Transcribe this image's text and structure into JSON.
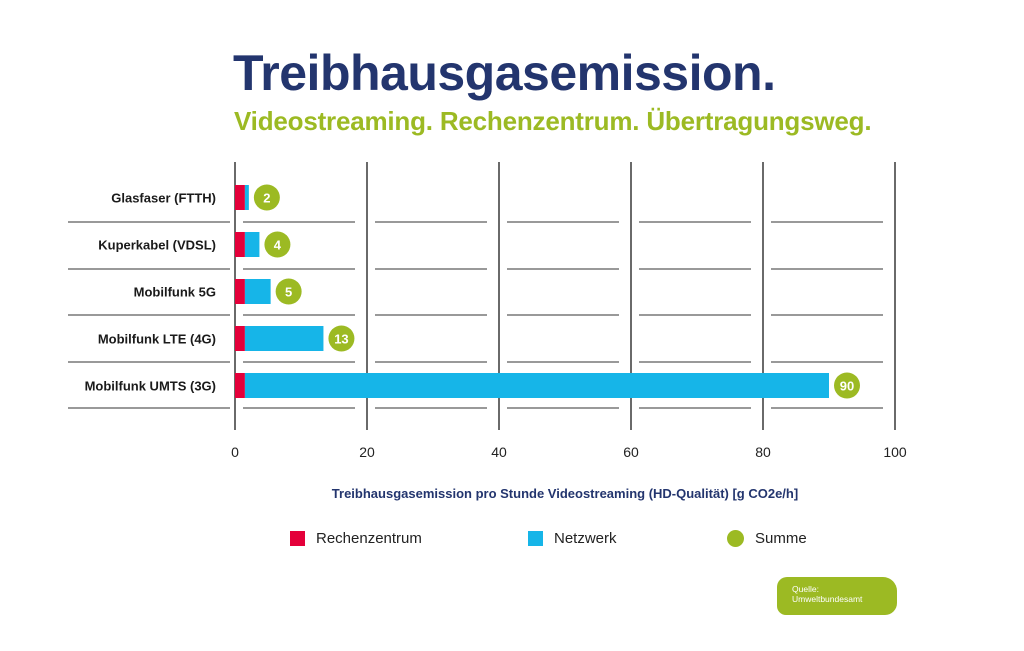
{
  "header": {
    "title": "Treibhausgasemission.",
    "subtitle": "Videostreaming. Rechenzentrum. Übertragungsweg."
  },
  "source": {
    "line1": "Quelle:",
    "line2": "Umweltbundesamt"
  },
  "colors": {
    "title": "#23356e",
    "subtitle": "#9cba23",
    "rechenzentrum": "#e4003a",
    "netzwerk": "#16b5e8",
    "summe": "#9cba23"
  },
  "chart_data": {
    "type": "bar",
    "orientation": "horizontal",
    "stacked": true,
    "categories": [
      "Glasfaser (FTTH)",
      "Kuperkabel (VDSL)",
      "Mobilfunk 5G",
      "Mobilfunk LTE (4G)",
      "Mobilfunk UMTS (3G)"
    ],
    "series": [
      {
        "name": "Rechenzentrum",
        "values": [
          1.5,
          1.5,
          1.5,
          1.5,
          1.5
        ]
      },
      {
        "name": "Netzwerk",
        "values": [
          0.6,
          2.2,
          3.9,
          11.9,
          88.5
        ]
      }
    ],
    "totals": [
      "2",
      "4",
      "5",
      "13",
      "90"
    ],
    "totals_name": "Summe",
    "xlabel": "Treibhausgasemission pro Stunde Videostreaming (HD-Qualität) [g CO2e/h]",
    "xlim": [
      0,
      100
    ],
    "xticks": [
      0,
      20,
      40,
      60,
      80,
      100
    ],
    "grid": true,
    "legend_position": "bottom"
  }
}
